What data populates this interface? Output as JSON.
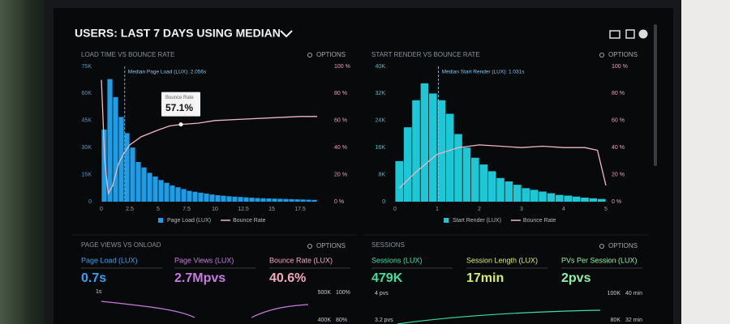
{
  "header": {
    "title": "USERS: LAST 7 DAYS USING MEDIAN"
  },
  "chart_data": [
    {
      "type": "histogram",
      "title": "LOAD TIME VS BOUNCE RATE",
      "options": "OPTIONS",
      "xlim": [
        0,
        20
      ],
      "xticks": [
        0,
        2.5,
        5,
        7.5,
        10,
        12.5,
        15,
        17.5
      ],
      "ylim": [
        0,
        75000
      ],
      "yticks": [
        {
          "value": 0,
          "label": "0"
        },
        {
          "value": 15000,
          "label": "15K"
        },
        {
          "value": 30000,
          "label": "30K"
        },
        {
          "value": 45000,
          "label": "45K"
        },
        {
          "value": 60000,
          "label": "60K"
        },
        {
          "value": 75000,
          "label": "75K"
        }
      ],
      "y2lim": [
        0,
        100
      ],
      "y2ticks": [
        {
          "value": 0,
          "label": "0 %"
        },
        {
          "value": 20,
          "label": "20 %"
        },
        {
          "value": 40,
          "label": "40 %"
        },
        {
          "value": 60,
          "label": "60 %"
        },
        {
          "value": 80,
          "label": "80 %"
        },
        {
          "value": 100,
          "label": "100 %"
        }
      ],
      "series": [
        {
          "name": "Page Load (LUX)",
          "type": "histogram",
          "color": "#1e9de6",
          "bins": [
            0,
            0.5,
            1,
            1.5,
            2,
            2.5,
            3,
            3.5,
            4,
            4.5,
            5,
            5.5,
            6,
            6.5,
            7,
            7.5,
            8,
            8.5,
            9,
            9.5,
            10,
            10.5,
            11,
            11.5,
            12,
            12.5,
            13,
            13.5,
            14,
            14.5,
            15,
            15.5,
            16,
            16.5,
            17,
            17.5,
            18,
            18.5,
            19
          ],
          "values": [
            40000,
            68000,
            58000,
            47000,
            38000,
            30000,
            22000,
            19000,
            16000,
            14000,
            12000,
            10500,
            9000,
            8000,
            7000,
            6000,
            5500,
            5000,
            4500,
            4000,
            3600,
            3300,
            3000,
            2800,
            2600,
            2400,
            2200,
            2000,
            1900,
            1800,
            1700,
            1600,
            1500,
            1400,
            1300,
            1200,
            1100,
            1000
          ]
        },
        {
          "name": "Bounce Rate",
          "type": "line",
          "axis": "y2",
          "color": "#f2b6c2",
          "x": [
            0,
            0.3,
            0.6,
            1,
            1.5,
            2,
            2.5,
            3.5,
            5,
            6,
            7,
            8.5,
            10,
            12.5,
            15,
            17.5,
            19
          ],
          "values": [
            90,
            30,
            6,
            12,
            28,
            36,
            42,
            48,
            53,
            56,
            57.1,
            58,
            60,
            61,
            62,
            63,
            63
          ]
        }
      ],
      "median": {
        "value": 2.056,
        "label": "Median Page Load (LUX): 2.056s"
      },
      "tooltip": {
        "title": "Bounce Rate",
        "x": 7,
        "value": 57.1,
        "value_label": "57.1%"
      }
    },
    {
      "type": "histogram",
      "title": "START RENDER VS BOUNCE RATE",
      "options": "OPTIONS",
      "xlim": [
        0,
        5
      ],
      "xticks": [
        0,
        1,
        2,
        3,
        4,
        5
      ],
      "ylim": [
        0,
        40000
      ],
      "yticks": [
        {
          "value": 0,
          "label": "0"
        },
        {
          "value": 8000,
          "label": "8K"
        },
        {
          "value": 16000,
          "label": "16K"
        },
        {
          "value": 24000,
          "label": "24K"
        },
        {
          "value": 32000,
          "label": "32K"
        },
        {
          "value": 40000,
          "label": "40K"
        }
      ],
      "y2lim": [
        0,
        100
      ],
      "y2ticks": [
        {
          "value": 0,
          "label": "0 %"
        },
        {
          "value": 20,
          "label": "20 %"
        },
        {
          "value": 40,
          "label": "40 %"
        },
        {
          "value": 60,
          "label": "60 %"
        },
        {
          "value": 80,
          "label": "80 %"
        },
        {
          "value": 100,
          "label": "100 %"
        }
      ],
      "series": [
        {
          "name": "Start Render (LUX)",
          "type": "histogram",
          "color": "#1cc7d6",
          "bins": [
            0,
            0.2,
            0.4,
            0.6,
            0.8,
            1,
            1.2,
            1.4,
            1.6,
            1.8,
            2,
            2.2,
            2.4,
            2.6,
            2.8,
            3,
            3.2,
            3.4,
            3.6,
            3.8,
            4,
            4.2,
            4.4,
            4.6,
            4.8,
            5
          ],
          "values": [
            12000,
            22000,
            30000,
            35000,
            32000,
            30000,
            26000,
            20000,
            16000,
            13000,
            11000,
            9000,
            7000,
            6000,
            5000,
            4000,
            3500,
            3000,
            2500,
            2000,
            1800,
            1500,
            1200,
            1000,
            800
          ]
        },
        {
          "name": "Bounce Rate",
          "type": "line",
          "axis": "y2",
          "color": "#f2b6c2",
          "x": [
            0.1,
            0.5,
            1,
            1.5,
            2,
            2.5,
            3,
            3.5,
            4,
            4.5,
            4.8,
            5
          ],
          "values": [
            10,
            22,
            35,
            40,
            42,
            41,
            40,
            41,
            40,
            40,
            38,
            12
          ]
        }
      ],
      "median": {
        "value": 1.031,
        "label": "Median Start Render (LUX): 1.031s"
      }
    }
  ],
  "panels": [
    {
      "title": "PAGE VIEWS VS ONLOAD",
      "options": "OPTIONS",
      "metrics": [
        {
          "label": "Page Load (LUX)",
          "value": "0.7s"
        },
        {
          "label": "Page Views (LUX)",
          "value": "2.7Mpvs"
        },
        {
          "label": "Bounce Rate (LUX)",
          "value": "40.6%"
        }
      ],
      "axis_labels": [
        "1s",
        "500K",
        "100%",
        "400K",
        "80%"
      ]
    },
    {
      "title": "SESSIONS",
      "options": "OPTIONS",
      "metrics": [
        {
          "label": "Sessions (LUX)",
          "value": "479K"
        },
        {
          "label": "Session Length (LUX)",
          "value": "17min"
        },
        {
          "label": "PVs Per Session (LUX)",
          "value": "2pvs"
        }
      ],
      "axis_labels": [
        "4 pvs",
        "3.2 pvs",
        "100K",
        "40 min",
        "80K",
        "32 min"
      ]
    }
  ]
}
